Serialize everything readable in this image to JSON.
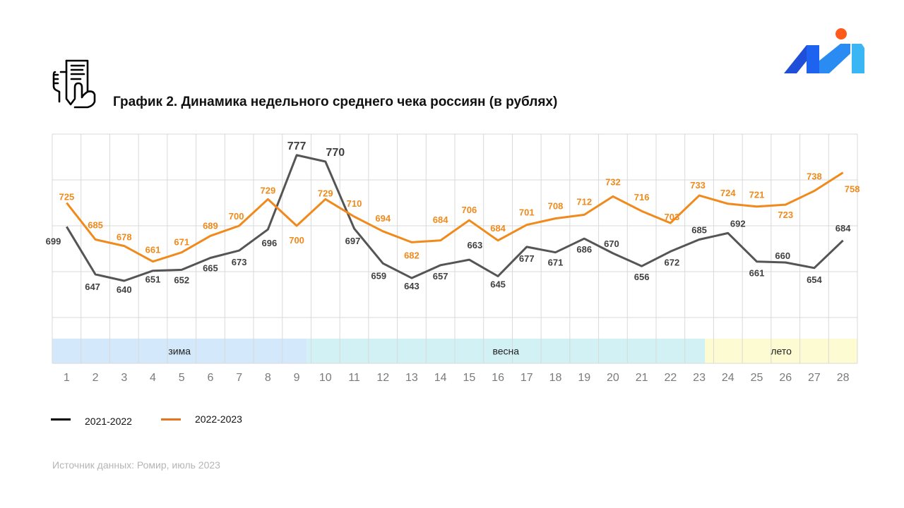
{
  "header": {
    "title": "График 2. Динамика недельного среднего чека россиян (в рублях)",
    "icon": "receipt-in-hand-icon",
    "logo": "brand-logo"
  },
  "footer": {
    "source": "Источник данных: Ромир, июль 2023"
  },
  "chart_data": {
    "type": "line",
    "title": "График 2. Динамика недельного среднего чека россиян (в рублях)",
    "xlabel": "",
    "ylabel": "",
    "categories": [
      "1",
      "2",
      "3",
      "4",
      "5",
      "6",
      "7",
      "8",
      "9",
      "10",
      "11",
      "12",
      "13",
      "14",
      "15",
      "16",
      "17",
      "18",
      "19",
      "20",
      "21",
      "22",
      "23",
      "24",
      "25",
      "26",
      "27",
      "28"
    ],
    "ylim": [
      550,
      800
    ],
    "grid": true,
    "legend_position": "bottom-left",
    "series": [
      {
        "name": "2021-2022",
        "color": "#555555",
        "legend_color": "#000000",
        "values": [
          699,
          647,
          640,
          651,
          652,
          665,
          673,
          696,
          777,
          770,
          697,
          659,
          643,
          657,
          663,
          645,
          677,
          671,
          686,
          670,
          656,
          672,
          685,
          692,
          661,
          660,
          654,
          684
        ]
      },
      {
        "name": "2022-2023",
        "color": "#f08a1c",
        "legend_color": "#e8731f",
        "values": [
          725,
          685,
          678,
          661,
          671,
          689,
          700,
          729,
          700,
          729,
          710,
          694,
          682,
          684,
          706,
          684,
          701,
          708,
          712,
          732,
          716,
          703,
          733,
          724,
          721,
          723,
          738,
          758
        ]
      }
    ],
    "seasons": [
      {
        "label": "зима",
        "from_week": 1,
        "to_week": 9.85,
        "color": "#d3e8fa"
      },
      {
        "label": "весна",
        "from_week": 9.85,
        "to_week": 23.7,
        "color": "#d2f1f4"
      },
      {
        "label": "лето",
        "from_week": 23.7,
        "to_week": 28,
        "color": "#fdfbd2"
      }
    ]
  }
}
